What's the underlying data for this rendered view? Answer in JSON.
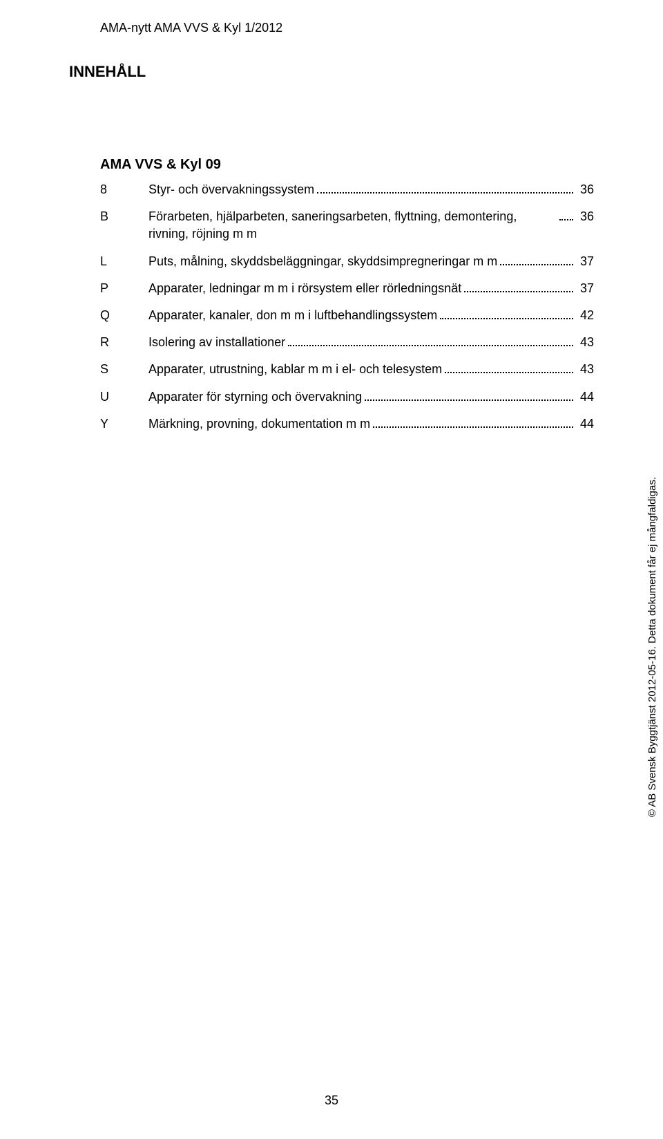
{
  "header": "AMA-nytt AMA VVS & Kyl 1/2012",
  "title": "INNEHÅLL",
  "subtitle": "AMA VVS & Kyl 09",
  "entries": [
    {
      "code": "8",
      "text": "Styr- och övervakningssystem",
      "page": "36"
    },
    {
      "code": "B",
      "text": "Förarbeten, hjälparbeten, saneringsarbeten, flyttning, demontering, rivning, röjning m m",
      "page": "36"
    },
    {
      "code": "L",
      "text": "Puts, målning, skyddsbeläggningar, skyddsimpregneringar m m",
      "page": "37"
    },
    {
      "code": "P",
      "text": "Apparater, ledningar m m i rörsystem eller rörledningsnät",
      "page": "37"
    },
    {
      "code": "Q",
      "text": "Apparater, kanaler, don m m i luftbehandlingssystem",
      "page": "42"
    },
    {
      "code": "R",
      "text": "Isolering av installationer",
      "page": "43"
    },
    {
      "code": "S",
      "text": "Apparater, utrustning, kablar m m i el- och telesystem",
      "page": "43"
    },
    {
      "code": "U",
      "text": "Apparater för styrning och övervakning",
      "page": "44"
    },
    {
      "code": "Y",
      "text": "Märkning, provning, dokumentation m m",
      "page": "44"
    }
  ],
  "sideText": "© AB Svensk Byggtjänst 2012-05-16. Detta dokument får ej mångfaldigas.",
  "footerPage": "35",
  "colors": {
    "background": "#ffffff",
    "text": "#000000"
  }
}
